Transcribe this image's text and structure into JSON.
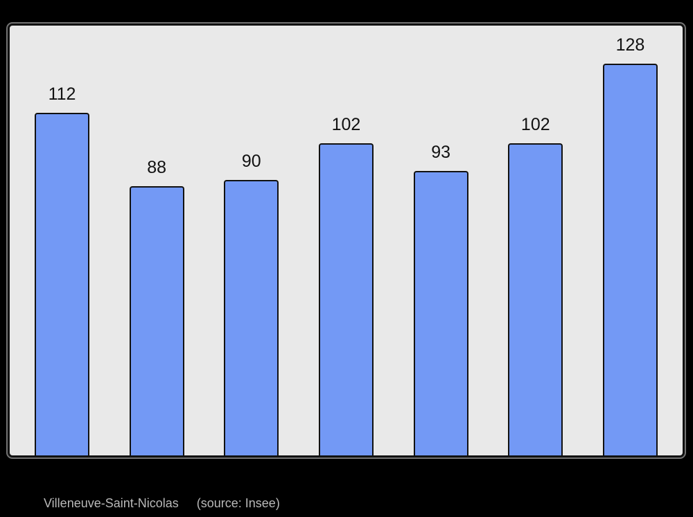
{
  "page": {
    "background_color": "#000000"
  },
  "chart": {
    "plot_background_color": "#e9e9e9",
    "frame_color": "#111111",
    "bar_fill_color": "#7399f5",
    "bar_border_color": "#111111",
    "value_label_color": "#111111",
    "caption_color": "#b9b9b9"
  },
  "chart_data": {
    "type": "bar",
    "categories": [
      "",
      "",
      "",
      "",
      "",
      "",
      ""
    ],
    "values": [
      112,
      88,
      90,
      102,
      93,
      102,
      128
    ],
    "data_labels": [
      "112",
      "88",
      "90",
      "102",
      "93",
      "102",
      "128"
    ],
    "title": "",
    "xlabel": "",
    "ylabel": "",
    "ylim": [
      0,
      140.5
    ],
    "grid": false,
    "legend": "none",
    "bar_count": 7
  },
  "caption": {
    "commune": "Villeneuve-Saint-Nicolas",
    "source": "(source: Insee)"
  }
}
